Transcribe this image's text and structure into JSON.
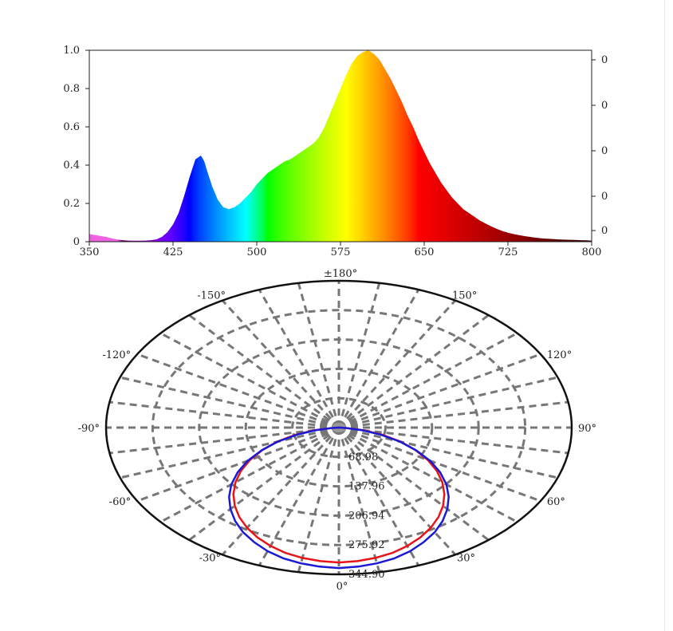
{
  "chart_data": [
    {
      "type": "area",
      "title": "",
      "xlabel": "",
      "ylabel": "",
      "xlim": [
        350,
        800
      ],
      "ylim": [
        0,
        1.0
      ],
      "x_ticks": [
        "350",
        "425",
        "500",
        "575",
        "650",
        "725",
        "800"
      ],
      "y_ticks": [
        "0",
        "0.2",
        "0.4",
        "0.6",
        "0.8",
        "1.0"
      ],
      "right_ticks": [
        "0",
        "0",
        "0",
        "0",
        "0"
      ],
      "fill": "visible-spectrum gradient",
      "series": [
        {
          "x": [
            350,
            355,
            360,
            365,
            370,
            375,
            380,
            385,
            390,
            395,
            400,
            405,
            410,
            415,
            420,
            425,
            430,
            435,
            440,
            445,
            450,
            453,
            455,
            460,
            465,
            470,
            475,
            480,
            485,
            490,
            495,
            500,
            505,
            510,
            515,
            520,
            525,
            530,
            535,
            540,
            545,
            550,
            555,
            560,
            565,
            570,
            575,
            580,
            585,
            590,
            595,
            600,
            605,
            610,
            615,
            620,
            625,
            630,
            635,
            640,
            645,
            650,
            655,
            660,
            665,
            670,
            675,
            680,
            685,
            690,
            695,
            700,
            705,
            710,
            715,
            720,
            725,
            730,
            735,
            740,
            745,
            750,
            755,
            760,
            765,
            770,
            775,
            780,
            785,
            790,
            795,
            800
          ],
          "values": [
            0.04,
            0.035,
            0.03,
            0.025,
            0.018,
            0.012,
            0.008,
            0.006,
            0.005,
            0.005,
            0.006,
            0.008,
            0.012,
            0.025,
            0.05,
            0.09,
            0.15,
            0.24,
            0.34,
            0.43,
            0.45,
            0.42,
            0.38,
            0.29,
            0.22,
            0.18,
            0.17,
            0.18,
            0.2,
            0.23,
            0.26,
            0.3,
            0.33,
            0.36,
            0.38,
            0.4,
            0.42,
            0.43,
            0.45,
            0.47,
            0.49,
            0.51,
            0.54,
            0.59,
            0.66,
            0.73,
            0.8,
            0.87,
            0.93,
            0.97,
            0.99,
            1.0,
            0.98,
            0.95,
            0.9,
            0.85,
            0.79,
            0.73,
            0.66,
            0.6,
            0.53,
            0.47,
            0.41,
            0.36,
            0.31,
            0.27,
            0.23,
            0.2,
            0.17,
            0.15,
            0.13,
            0.11,
            0.095,
            0.08,
            0.067,
            0.056,
            0.047,
            0.04,
            0.034,
            0.029,
            0.025,
            0.021,
            0.018,
            0.016,
            0.014,
            0.012,
            0.011,
            0.01,
            0.009,
            0.008,
            0.007,
            0.006
          ]
        }
      ]
    },
    {
      "type": "polar",
      "title": "",
      "angle_labels": [
        {
          "deg": 0,
          "label": "0°"
        },
        {
          "deg": 30,
          "label": "30°"
        },
        {
          "deg": 60,
          "label": "60°"
        },
        {
          "deg": 90,
          "label": "90°"
        },
        {
          "deg": 120,
          "label": "120°"
        },
        {
          "deg": 150,
          "label": "150°"
        },
        {
          "deg": 180,
          "label": "±180°"
        },
        {
          "deg": -150,
          "label": "-150°"
        },
        {
          "deg": -120,
          "label": "-120°"
        },
        {
          "deg": -90,
          "label": "-90°"
        },
        {
          "deg": -60,
          "label": "-60°"
        },
        {
          "deg": -30,
          "label": "-30°"
        }
      ],
      "spoke_step_deg": 10,
      "rlim": [
        0,
        344.9
      ],
      "r_ticks": [
        "68.98",
        "137.96",
        "206.94",
        "275.92",
        "344.90"
      ],
      "r_tick_values": [
        68.98,
        137.96,
        206.94,
        275.92,
        344.9
      ],
      "series": [
        {
          "color": "#e8141a",
          "angles_deg": [
            -90,
            -85,
            -80,
            -75,
            -70,
            -65,
            -60,
            -55,
            -50,
            -45,
            -40,
            -35,
            -30,
            -25,
            -20,
            -15,
            -10,
            -5,
            0,
            5,
            10,
            15,
            20,
            25,
            30,
            35,
            40,
            45,
            50,
            55,
            60,
            65,
            70,
            75,
            80,
            85,
            90
          ],
          "r": [
            0,
            12,
            38,
            68,
            98,
            125,
            152,
            177,
            200,
            221,
            240,
            257,
            272,
            285,
            296,
            305,
            311,
            315,
            317,
            315,
            311,
            305,
            296,
            285,
            272,
            257,
            240,
            221,
            200,
            177,
            152,
            125,
            98,
            68,
            38,
            12,
            0
          ]
        },
        {
          "color": "#1a1ad6",
          "angles_deg": [
            -90,
            -85,
            -80,
            -75,
            -70,
            -65,
            -60,
            -55,
            -50,
            -45,
            -40,
            -35,
            -30,
            -25,
            -20,
            -15,
            -10,
            -5,
            0,
            5,
            10,
            15,
            20,
            25,
            30,
            35,
            40,
            45,
            50,
            55,
            60,
            65,
            70,
            75,
            80,
            85,
            90
          ],
          "r": [
            0,
            10,
            34,
            64,
            96,
            126,
            156,
            183,
            208,
            230,
            250,
            268,
            284,
            297,
            309,
            318,
            324,
            328,
            330,
            328,
            324,
            318,
            309,
            297,
            284,
            268,
            250,
            230,
            208,
            183,
            156,
            126,
            96,
            64,
            34,
            10,
            0
          ]
        }
      ]
    }
  ]
}
